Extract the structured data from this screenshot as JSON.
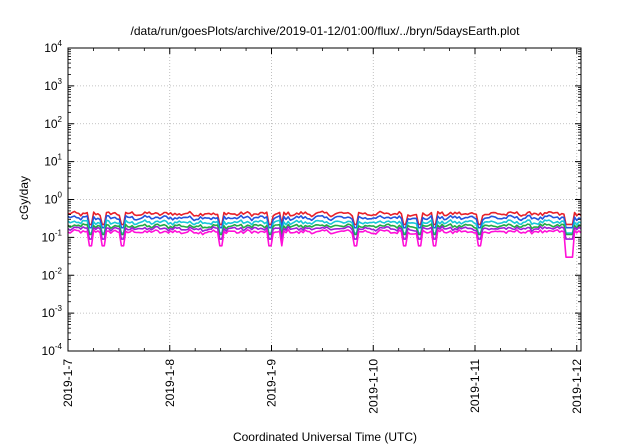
{
  "chart_data": {
    "type": "line",
    "title": "/data/run/goesPlots/archive/2019-01-12/01:00/flux/../bryn/5daysEarth.plot",
    "xlabel": "Coordinated Universal Time (UTC)",
    "ylabel": "cGy/day",
    "yscale": "log",
    "ylim": [
      0.0001,
      10000
    ],
    "xlim": [
      "2019-01-07",
      "2019-01-12 01:00"
    ],
    "grid": true,
    "y_ticks": [
      {
        "base": "10",
        "exp": "4"
      },
      {
        "base": "10",
        "exp": "3"
      },
      {
        "base": "10",
        "exp": "2"
      },
      {
        "base": "10",
        "exp": "1"
      },
      {
        "base": "10",
        "exp": "0"
      },
      {
        "base": "10",
        "exp": "-1"
      },
      {
        "base": "10",
        "exp": "-2"
      },
      {
        "base": "10",
        "exp": "-3"
      },
      {
        "base": "10",
        "exp": "-4"
      }
    ],
    "x_ticks": [
      "2019-1-7",
      "2019-1-8",
      "2019-1-9",
      "2019-1-10",
      "2019-1-11",
      "2019-1-12"
    ],
    "series": [
      {
        "color": "#e8202a",
        "base": 0.42,
        "dip_to": 0.22
      },
      {
        "color": "#2255dd",
        "base": 0.33,
        "dip_to": 0.18
      },
      {
        "color": "#18c8d8",
        "base": 0.25,
        "dip_to": 0.13
      },
      {
        "color": "#22aa44",
        "base": 0.2,
        "dip_to": 0.12
      },
      {
        "color": "#9c1fd8",
        "base": 0.17,
        "dip_to": 0.09
      },
      {
        "color": "#ff10d8",
        "base": 0.14,
        "dip_to": 0.06
      }
    ],
    "dip_days": [
      0.22,
      0.35,
      0.53,
      1.5,
      1.98,
      2.1,
      2.82,
      3.3,
      3.45,
      3.6,
      4.05,
      4.9,
      4.95
    ]
  }
}
